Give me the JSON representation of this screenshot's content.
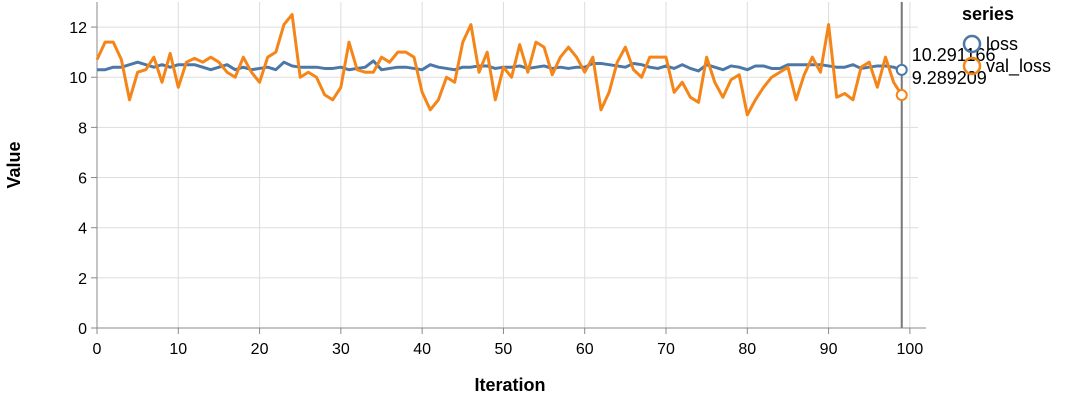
{
  "chart_data": {
    "type": "line",
    "title": "",
    "xlabel": "Iteration",
    "ylabel": "Value",
    "xlim": [
      0,
      101
    ],
    "ylim": [
      0,
      13
    ],
    "x_ticks": [
      0,
      10,
      20,
      30,
      40,
      50,
      60,
      70,
      80,
      90,
      100
    ],
    "y_ticks": [
      0,
      2,
      4,
      6,
      8,
      10,
      12
    ],
    "grid": true,
    "legend": {
      "title": "series",
      "placement": "top-right"
    },
    "rule_x": 99,
    "x": [
      0,
      1,
      2,
      3,
      4,
      5,
      6,
      7,
      8,
      9,
      10,
      11,
      12,
      13,
      14,
      15,
      16,
      17,
      18,
      19,
      20,
      21,
      22,
      23,
      24,
      25,
      26,
      27,
      28,
      29,
      30,
      31,
      32,
      33,
      34,
      35,
      36,
      37,
      38,
      39,
      40,
      41,
      42,
      43,
      44,
      45,
      46,
      47,
      48,
      49,
      50,
      51,
      52,
      53,
      54,
      55,
      56,
      57,
      58,
      59,
      60,
      61,
      62,
      63,
      64,
      65,
      66,
      67,
      68,
      69,
      70,
      71,
      72,
      73,
      74,
      75,
      76,
      77,
      78,
      79,
      80,
      81,
      82,
      83,
      84,
      85,
      86,
      87,
      88,
      89,
      90,
      91,
      92,
      93,
      94,
      95,
      96,
      97,
      98,
      99
    ],
    "series": [
      {
        "name": "loss",
        "color": "#4c78a8",
        "values": [
          10.3,
          10.3,
          10.4,
          10.4,
          10.5,
          10.6,
          10.5,
          10.4,
          10.5,
          10.4,
          10.5,
          10.5,
          10.5,
          10.4,
          10.3,
          10.4,
          10.5,
          10.3,
          10.4,
          10.3,
          10.35,
          10.4,
          10.3,
          10.6,
          10.45,
          10.4,
          10.4,
          10.4,
          10.35,
          10.35,
          10.4,
          10.3,
          10.35,
          10.4,
          10.65,
          10.3,
          10.35,
          10.4,
          10.4,
          10.35,
          10.3,
          10.5,
          10.4,
          10.35,
          10.3,
          10.4,
          10.4,
          10.45,
          10.45,
          10.35,
          10.4,
          10.4,
          10.45,
          10.35,
          10.4,
          10.45,
          10.35,
          10.4,
          10.35,
          10.4,
          10.4,
          10.55,
          10.55,
          10.5,
          10.45,
          10.4,
          10.55,
          10.5,
          10.4,
          10.35,
          10.45,
          10.35,
          10.5,
          10.35,
          10.25,
          10.5,
          10.4,
          10.3,
          10.45,
          10.4,
          10.3,
          10.45,
          10.45,
          10.35,
          10.35,
          10.5,
          10.5,
          10.5,
          10.5,
          10.5,
          10.45,
          10.4,
          10.4,
          10.5,
          10.35,
          10.4,
          10.45,
          10.45,
          10.4,
          10.291166
        ],
        "end_label": "10.291166"
      },
      {
        "name": "val_loss",
        "color": "#f58518",
        "values": [
          10.7,
          11.4,
          11.4,
          10.7,
          9.1,
          10.2,
          10.3,
          10.8,
          9.8,
          10.95,
          9.6,
          10.6,
          10.75,
          10.6,
          10.8,
          10.6,
          10.2,
          10.0,
          10.8,
          10.2,
          9.8,
          10.8,
          11.0,
          12.1,
          12.5,
          10.0,
          10.2,
          10.0,
          9.3,
          9.1,
          9.6,
          11.4,
          10.3,
          10.2,
          10.2,
          10.8,
          10.6,
          11.0,
          11.0,
          10.8,
          9.4,
          8.7,
          9.1,
          10.0,
          9.8,
          11.4,
          12.1,
          10.2,
          11.0,
          9.1,
          10.4,
          10.0,
          11.3,
          10.2,
          11.4,
          11.2,
          10.1,
          10.8,
          11.2,
          10.8,
          10.2,
          10.8,
          8.7,
          9.4,
          10.6,
          11.2,
          10.3,
          10.0,
          10.8,
          10.8,
          10.8,
          9.4,
          9.8,
          9.2,
          9.0,
          10.8,
          9.8,
          9.2,
          9.9,
          10.1,
          8.5,
          9.1,
          9.6,
          10.0,
          10.2,
          10.4,
          9.1,
          10.1,
          10.8,
          10.2,
          12.1,
          9.2,
          9.35,
          9.1,
          10.4,
          10.6,
          9.6,
          10.8,
          9.8,
          9.289209
        ],
        "end_label": "9.289209"
      }
    ]
  }
}
